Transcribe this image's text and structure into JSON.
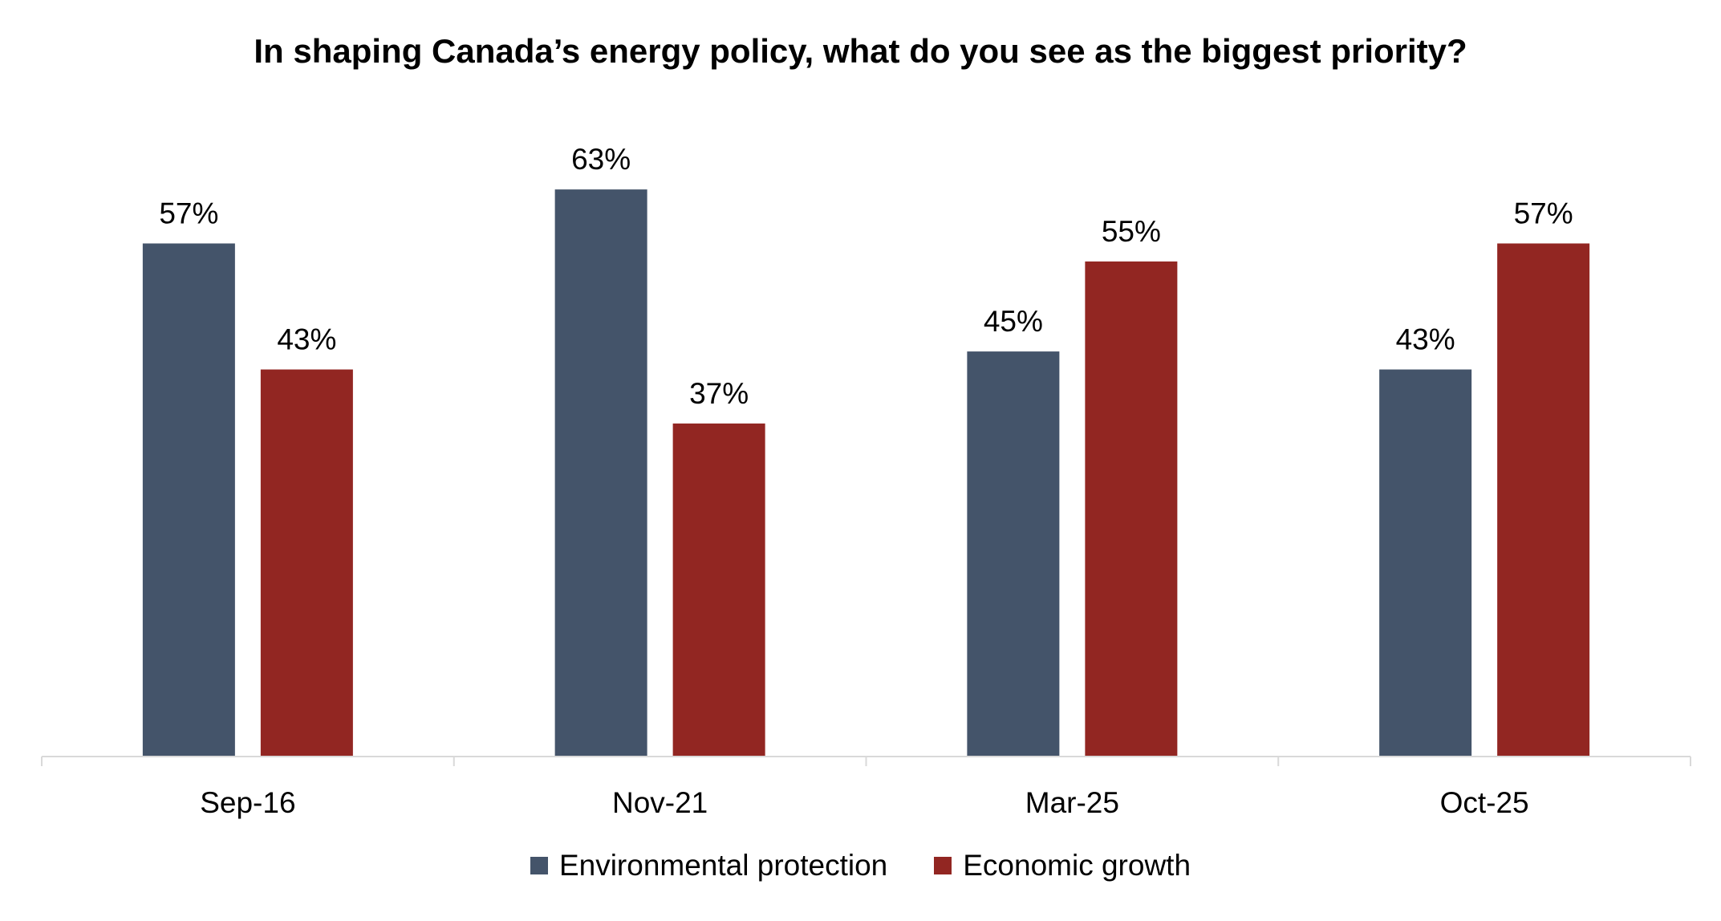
{
  "chart_data": {
    "type": "bar",
    "title": "In shaping Canada’s energy policy, what do you see as the biggest priority?",
    "categories": [
      "Sep-16",
      "Nov-21",
      "Mar-25",
      "Oct-25"
    ],
    "series": [
      {
        "name": "Environmental protection",
        "color": "#44546A",
        "values": [
          57,
          63,
          45,
          43
        ],
        "labels": [
          "57%",
          "63%",
          "45%",
          "43%"
        ]
      },
      {
        "name": "Economic growth",
        "color": "#922622",
        "values": [
          43,
          37,
          55,
          57
        ],
        "labels": [
          "43%",
          "37%",
          "55%",
          "57%"
        ]
      }
    ],
    "ylim": [
      0,
      70
    ],
    "grid": false,
    "legend_position": "bottom"
  }
}
